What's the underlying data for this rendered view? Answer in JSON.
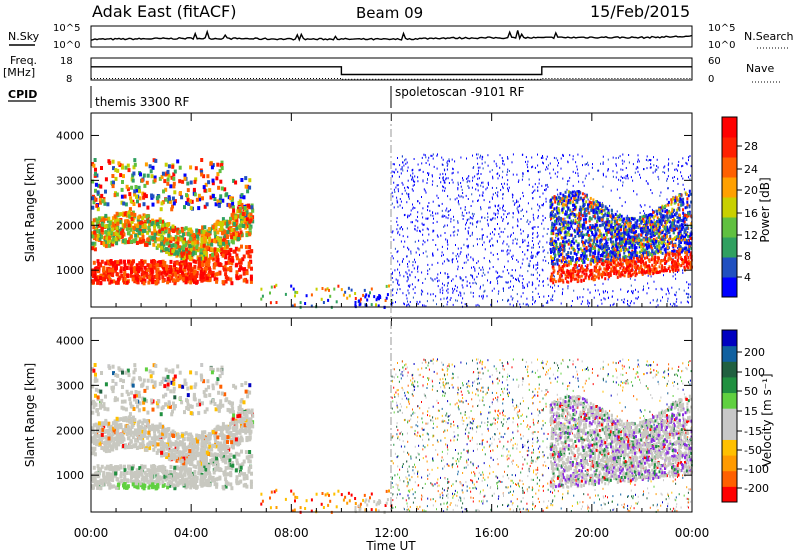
{
  "header": {
    "title": "Adak East (fitACF)",
    "beam": "Beam 09",
    "date": "15/Feb/2015"
  },
  "left_labels": {
    "nsky": "N.Sky",
    "freq": "Freq.",
    "freq_unit": "[MHz]",
    "cpid": "CPID"
  },
  "right_labels": {
    "nsearch": "N.Search",
    "nave": "Nave"
  },
  "noise_ticks": {
    "left": [
      "10^5",
      "10^0"
    ],
    "right": [
      "10^5",
      "10^0"
    ]
  },
  "freq_ticks": {
    "left": [
      "18",
      "8"
    ],
    "right": [
      "60",
      "0"
    ]
  },
  "cpid": {
    "first": "themis 3300 RF",
    "second": "spoletoscan -9101 RF"
  },
  "colors": {
    "power_scale": [
      "#0000ff",
      "#2050c0",
      "#30a060",
      "#60c040",
      "#c8d000",
      "#ffa000",
      "#ff6000",
      "#ff2000",
      "#ff0000"
    ],
    "velocity_scale": [
      "#ff0000",
      "#ff6000",
      "#ff9a00",
      "#ffc000",
      "#c8c8c8",
      "#c8c8c8",
      "#60d040",
      "#209040",
      "#206040",
      "#1060a0",
      "#0000c0"
    ],
    "ground_scatter": "#c8c8c0"
  },
  "chart_data": [
    {
      "type": "line",
      "title": "N.Sky / N.Search",
      "x": [
        "00:00",
        "02:00",
        "04:00",
        "06:00",
        "08:00",
        "10:00",
        "12:00",
        "14:00",
        "16:00",
        "18:00",
        "20:00",
        "22:00",
        "24:00"
      ],
      "series": [
        {
          "name": "N.Sky",
          "values": [
            0.7,
            0.9,
            1.1,
            1.0,
            0.8,
            0.8,
            0.7,
            1.2,
            1.3,
            1.3,
            1.5,
            1.4,
            1.9
          ]
        }
      ],
      "yscale": "log",
      "ylim": [
        "10^0",
        "10^5"
      ]
    },
    {
      "type": "line",
      "title": "Freq. / Nave",
      "x": [
        0,
        10,
        10,
        18,
        18,
        24
      ],
      "series": [
        {
          "name": "Freq.",
          "values": [
            14,
            14,
            10.5,
            10.5,
            14,
            14
          ]
        },
        {
          "name": "Nave",
          "values": [
            4,
            4,
            2,
            2,
            4,
            4
          ]
        }
      ],
      "ylim": [
        8,
        18
      ],
      "y2lim": [
        0,
        60
      ]
    },
    {
      "type": "heatmap",
      "title": "Power",
      "ylabel": "Slant Range [km]",
      "colorbar_label": "Power [dB]",
      "colorbar_ticks": [
        "28",
        "24",
        "20",
        "16",
        "12",
        "8",
        "4"
      ],
      "ylim": [
        180,
        4500
      ],
      "yticks": [
        "4000",
        "3000",
        "2000",
        "1000"
      ],
      "x_hours": [
        0,
        24
      ]
    },
    {
      "type": "heatmap",
      "title": "Velocity",
      "ylabel": "Slant Range [km]",
      "xlabel": "Time UT",
      "colorbar_label": "Velocity [m s⁻¹]",
      "colorbar_ticks": [
        "200",
        "100",
        "50",
        "15",
        "-15",
        "-50",
        "-100",
        "-200"
      ],
      "ylim": [
        180,
        4500
      ],
      "yticks": [
        "4000",
        "3000",
        "2000",
        "1000"
      ],
      "xticks": [
        "00:00",
        "04:00",
        "08:00",
        "12:00",
        "16:00",
        "20:00",
        "00:00"
      ]
    }
  ]
}
